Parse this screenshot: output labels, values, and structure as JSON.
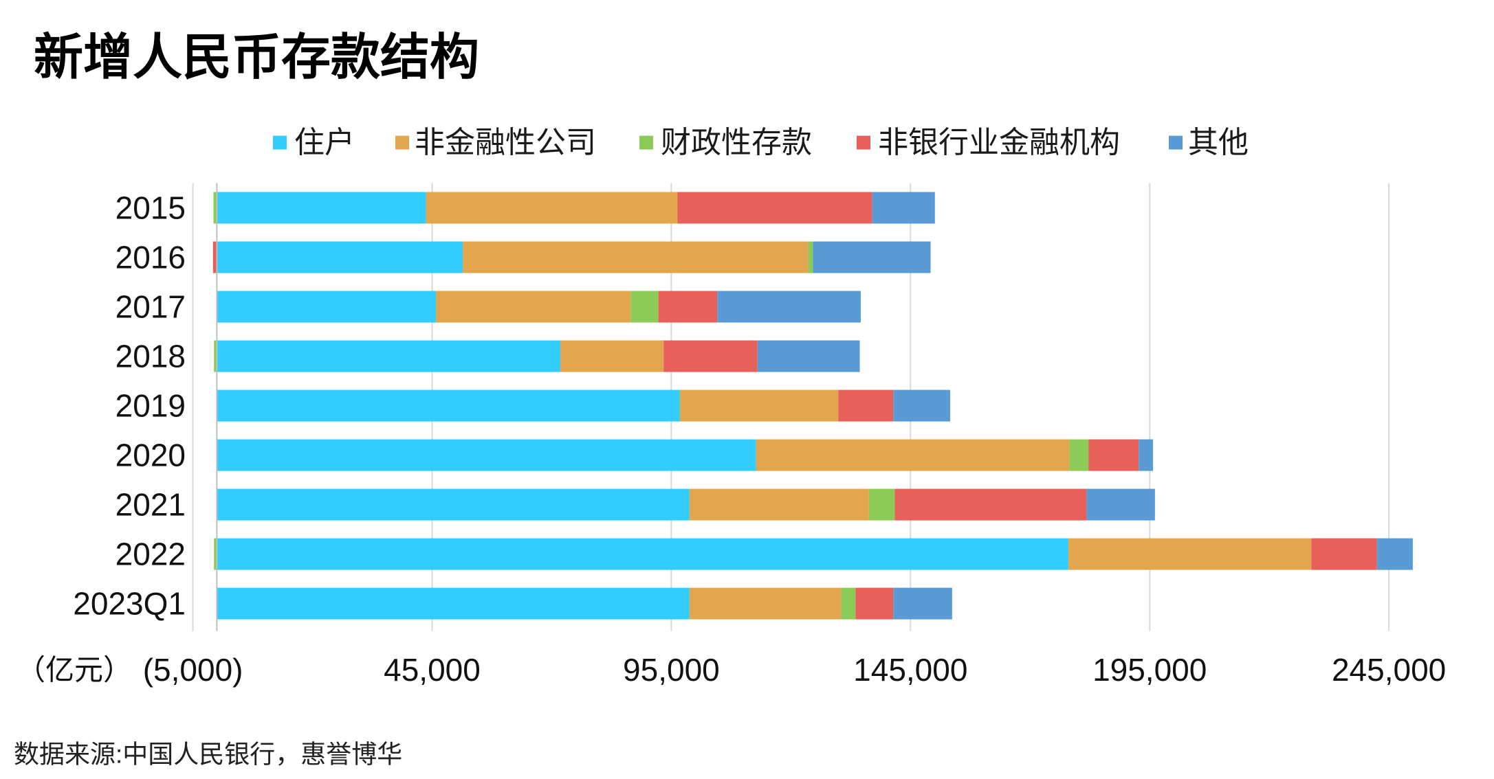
{
  "source": "数据来源:中国人民银行，惠誉博华",
  "chart_data": {
    "type": "bar",
    "orientation": "horizontal",
    "stacked": true,
    "title": "新增人民币存款结构",
    "categories": [
      "2015",
      "2016",
      "2017",
      "2018",
      "2019",
      "2020",
      "2021",
      "2022",
      "2023Q1"
    ],
    "series": [
      {
        "name": "住户",
        "color": "#33CCFF",
        "values": [
          43700,
          51400,
          45800,
          71800,
          96800,
          112700,
          98800,
          178000,
          98800
        ]
      },
      {
        "name": "非金融性公司",
        "color": "#E4A54F",
        "values": [
          52600,
          72200,
          40700,
          21600,
          33100,
          65500,
          37500,
          50800,
          31700
        ]
      },
      {
        "name": "财政性存款",
        "color": "#8DCB58",
        "values": [
          -700,
          1000,
          5800,
          -600,
          0,
          4000,
          5400,
          -600,
          3000
        ]
      },
      {
        "name": "非银行业金融机构",
        "color": "#E8605A",
        "values": [
          40700,
          -800,
          12300,
          19600,
          11500,
          10500,
          40100,
          13700,
          7900
        ]
      },
      {
        "name": "其他",
        "color": "#5B9BD5",
        "values": [
          13100,
          24600,
          30000,
          21400,
          11900,
          3000,
          14300,
          7500,
          12300
        ]
      }
    ],
    "x_unit_label": "（亿元）",
    "xlim": [
      -5000,
      255000
    ],
    "x_ticks": [
      -5000,
      45000,
      95000,
      145000,
      195000,
      245000
    ],
    "x_tick_labels": [
      "(5,000)",
      "45,000",
      "95,000",
      "145,000",
      "195,000",
      "245,000"
    ],
    "grid": true,
    "gridline_color": "#D9D9D9",
    "legend": "top"
  }
}
